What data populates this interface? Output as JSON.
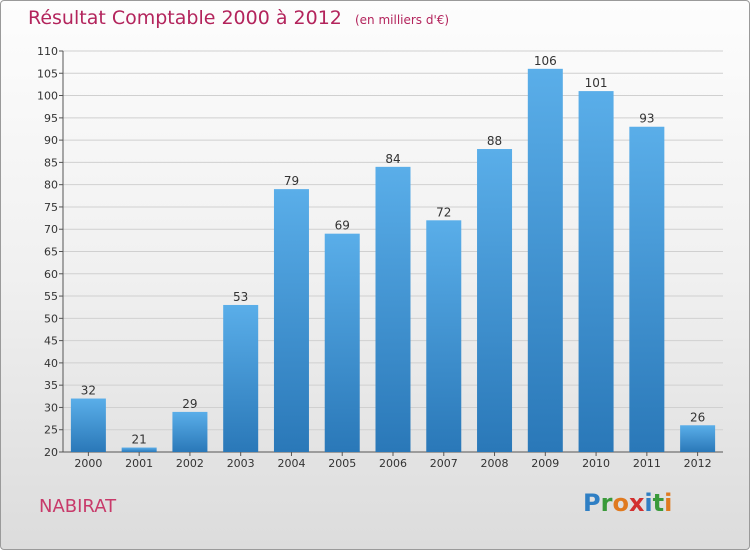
{
  "chart_data": {
    "type": "bar",
    "title": "Résultat Comptable 2000 à 2012",
    "subtitle": "(en milliers d'€)",
    "categories": [
      "2000",
      "2001",
      "2002",
      "2003",
      "2004",
      "2005",
      "2006",
      "2007",
      "2008",
      "2009",
      "2010",
      "2011",
      "2012"
    ],
    "values": [
      32,
      21,
      29,
      53,
      79,
      69,
      84,
      72,
      88,
      106,
      101,
      93,
      26
    ],
    "ylim": [
      20,
      110
    ],
    "yticks": [
      20,
      25,
      30,
      35,
      40,
      45,
      50,
      55,
      60,
      65,
      70,
      75,
      80,
      85,
      90,
      95,
      100,
      105,
      110
    ],
    "grid": true,
    "bar_color": "#3b8fd6",
    "xlabel": "",
    "ylabel": ""
  },
  "commune": "NABIRAT",
  "brand": {
    "letters": [
      "P",
      "r",
      "o",
      "x",
      "i",
      "t",
      "i"
    ]
  },
  "colors": {
    "title": "#b3245c",
    "bar_top": "#5aaee9",
    "bar_bottom": "#2a78b8"
  }
}
